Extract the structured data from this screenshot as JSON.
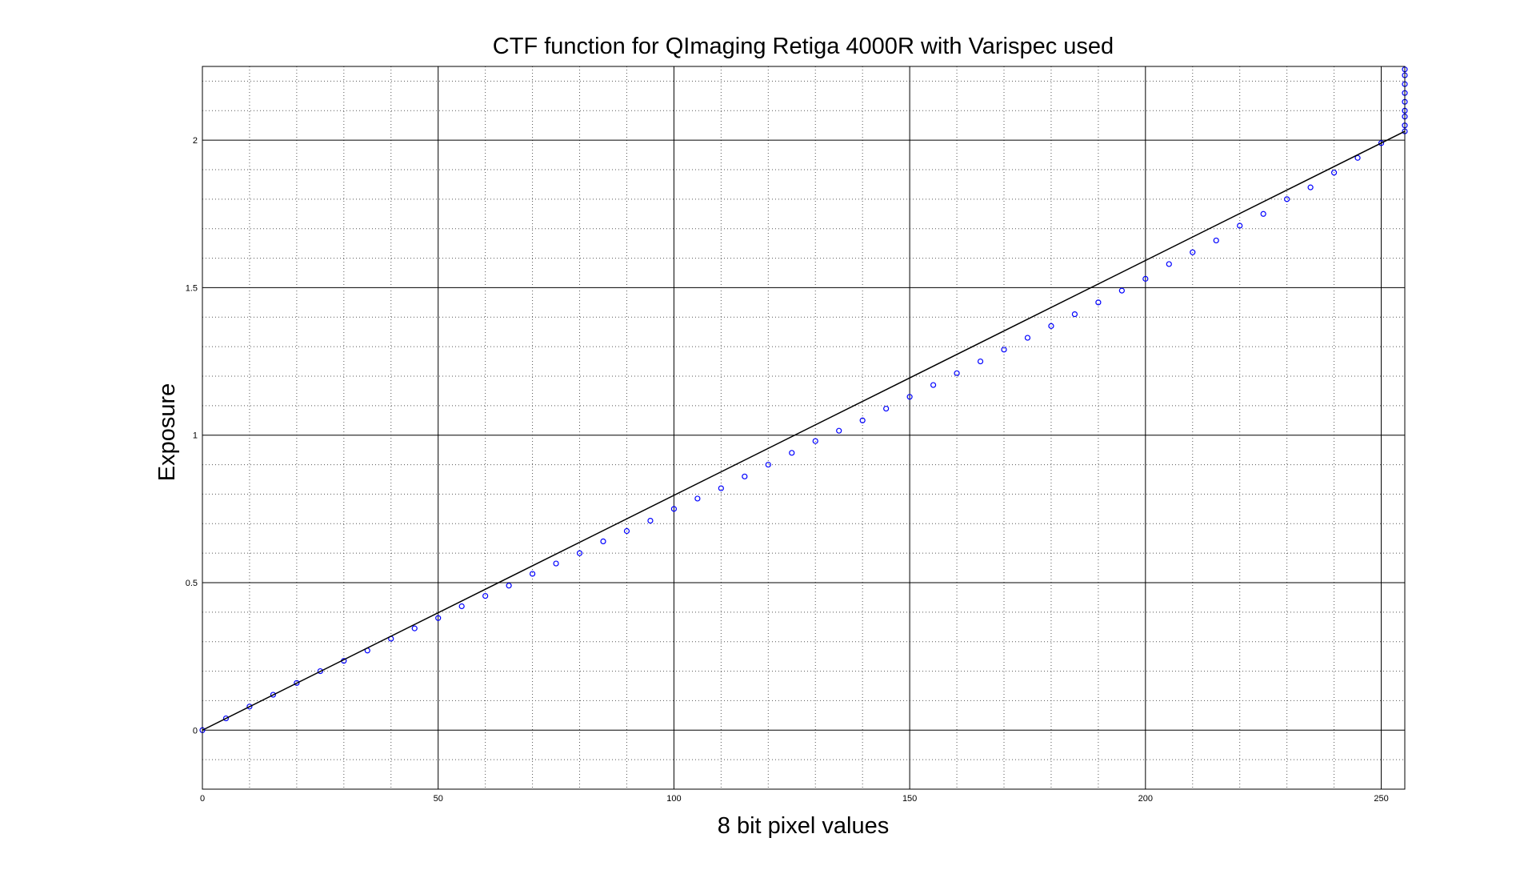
{
  "chart_data": {
    "type": "scatter",
    "title": "CTF function for QImaging Retiga 4000R with Varispec used",
    "xlabel": "8 bit pixel values",
    "ylabel": "Exposure",
    "xlim": [
      0,
      255
    ],
    "ylim": [
      -0.2,
      2.25
    ],
    "x_major_ticks": [
      0,
      50,
      100,
      150,
      200,
      250
    ],
    "x_minor_ticks": [
      10,
      20,
      30,
      40,
      60,
      70,
      80,
      90,
      110,
      120,
      130,
      140,
      160,
      170,
      180,
      190,
      210,
      220,
      230,
      240
    ],
    "y_major_ticks": [
      0,
      0.5,
      1,
      1.5,
      2
    ],
    "y_minor_ticks": [
      -0.1,
      0.1,
      0.2,
      0.3,
      0.4,
      0.6,
      0.7,
      0.8,
      0.9,
      1.1,
      1.2,
      1.3,
      1.4,
      1.6,
      1.7,
      1.8,
      1.9,
      2.1,
      2.2
    ],
    "x_tick_labels": [
      "0",
      "50",
      "100",
      "150",
      "200",
      "250"
    ],
    "y_tick_labels": [
      "0",
      "0.5",
      "1",
      "1.5",
      "2"
    ],
    "grid": true,
    "series": [
      {
        "type": "scatter",
        "marker": "circle-open",
        "color": "#0000ff",
        "x": [
          0,
          5,
          10,
          15,
          20,
          25,
          30,
          35,
          40,
          45,
          50,
          55,
          60,
          65,
          70,
          75,
          80,
          85,
          90,
          95,
          100,
          105,
          110,
          115,
          120,
          125,
          130,
          135,
          140,
          145,
          150,
          155,
          160,
          165,
          170,
          175,
          180,
          185,
          190,
          195,
          200,
          205,
          210,
          215,
          220,
          225,
          230,
          235,
          240,
          245,
          250,
          255
        ],
        "values": [
          0.0,
          0.04,
          0.08,
          0.12,
          0.16,
          0.2,
          0.235,
          0.27,
          0.31,
          0.345,
          0.38,
          0.42,
          0.455,
          0.49,
          0.53,
          0.565,
          0.6,
          0.64,
          0.675,
          0.71,
          0.75,
          0.785,
          0.82,
          0.86,
          0.9,
          0.94,
          0.98,
          1.015,
          1.05,
          1.09,
          1.13,
          1.17,
          1.21,
          1.25,
          1.29,
          1.33,
          1.37,
          1.41,
          1.45,
          1.49,
          1.53,
          1.58,
          1.62,
          1.66,
          1.71,
          1.75,
          1.8,
          1.84,
          1.89,
          1.94,
          1.99,
          2.03
        ]
      },
      {
        "type": "scatter",
        "marker": "circle-open",
        "color": "#0000ff",
        "x": [
          255,
          255,
          255,
          255,
          255,
          255,
          255,
          255
        ],
        "values": [
          2.05,
          2.08,
          2.1,
          2.13,
          2.16,
          2.19,
          2.22,
          2.24
        ]
      },
      {
        "type": "line",
        "color": "#000000",
        "x": [
          0,
          255
        ],
        "values": [
          0.0,
          2.03
        ]
      }
    ]
  }
}
